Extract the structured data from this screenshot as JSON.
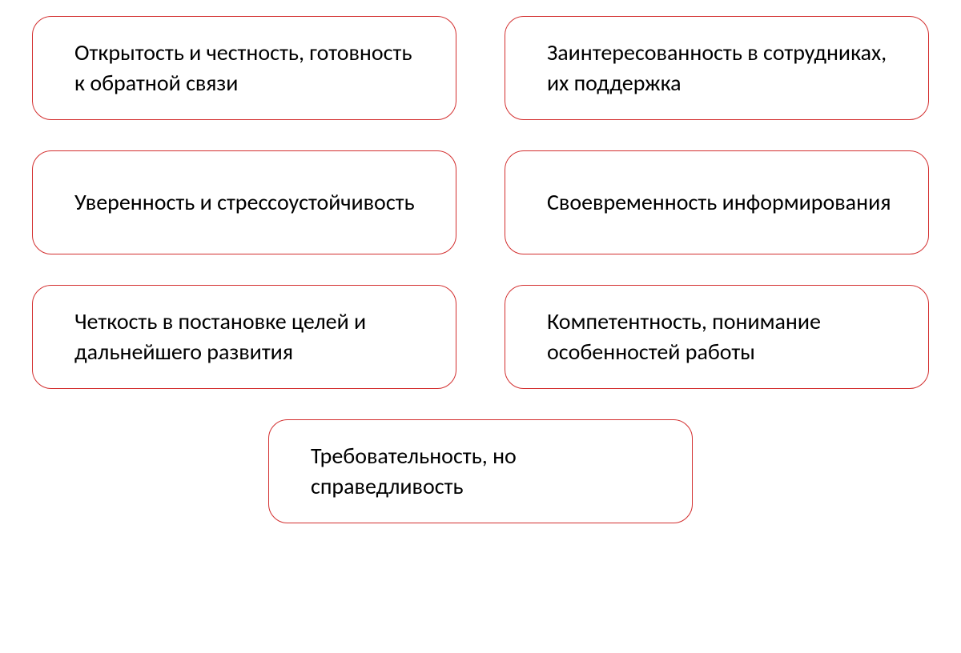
{
  "diagram": {
    "type": "infographic",
    "layout": "2-column-grid-with-centered-last",
    "background_color": "#ffffff",
    "box_style": {
      "border_color": "#d32f2f",
      "border_width": 1.5,
      "border_radius": 24,
      "fill_color": "#ffffff",
      "text_color": "#000000",
      "font_size": 28,
      "font_family": "Calibri"
    },
    "boxes": [
      {
        "id": "box-1",
        "text": "Открытость и честность, готовность к обратной связи"
      },
      {
        "id": "box-2",
        "text": "Заинтересованность в сотрудниках, их поддержка"
      },
      {
        "id": "box-3",
        "text": "Уверенность и стрессоустойчивость"
      },
      {
        "id": "box-4",
        "text": "Своевременность информирования"
      },
      {
        "id": "box-5",
        "text": "Четкость в постановке целей и дальнейшего развития"
      },
      {
        "id": "box-6",
        "text": "Компетентность, понимание особенностей работы"
      },
      {
        "id": "box-7",
        "text": "Требовательность, но справедливость"
      }
    ]
  }
}
